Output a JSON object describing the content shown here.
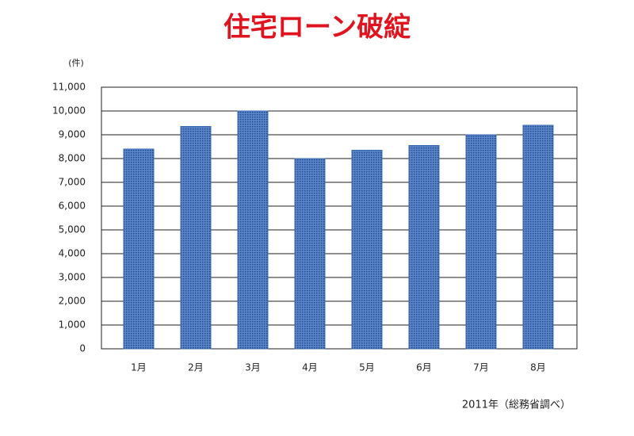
{
  "chart_data": {
    "type": "bar",
    "title": "住宅ローン破綻",
    "y_unit": "(件)",
    "note": "2011年（総務省調べ）",
    "categories": [
      "1月",
      "2月",
      "3月",
      "4月",
      "5月",
      "6月",
      "7月",
      "8月"
    ],
    "values": [
      8400,
      9350,
      10000,
      8000,
      8350,
      8550,
      9000,
      9400
    ],
    "color": "#3d6cb5",
    "ylim": [
      0,
      11000
    ],
    "yticks": [
      0,
      {
        "value": 1000,
        "label": "1,000"
      },
      {
        "value": 2000,
        "label": "2,000"
      },
      {
        "value": 3000,
        "label": "3,000"
      },
      {
        "value": 4000,
        "label": "4,000"
      },
      {
        "value": 5000,
        "label": "5,000"
      },
      {
        "value": 6000,
        "label": "6,000"
      },
      {
        "value": 7000,
        "label": "7,000"
      },
      {
        "value": 8000,
        "label": "8,000"
      },
      {
        "value": 9000,
        "label": "9,000"
      },
      {
        "value": 10000,
        "label": "10,000"
      },
      {
        "value": 11000,
        "label": "11,000"
      }
    ],
    "grid": true
  }
}
